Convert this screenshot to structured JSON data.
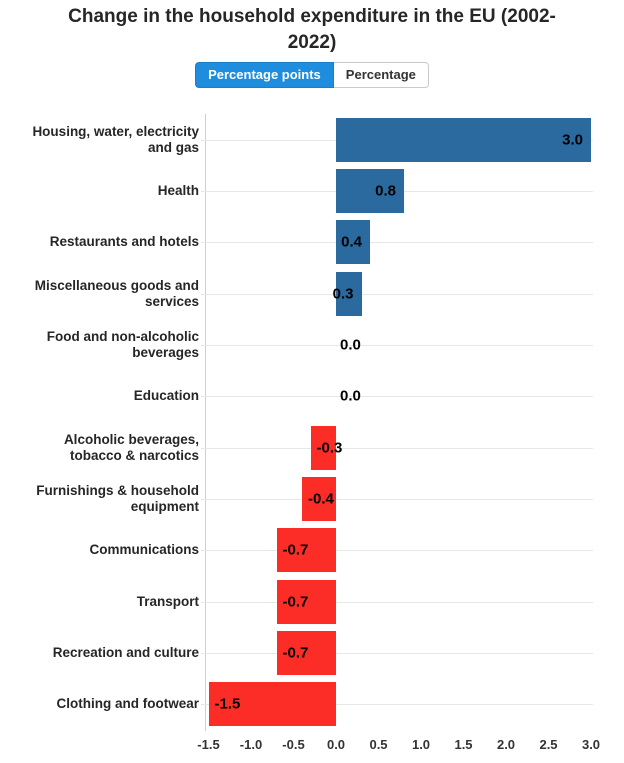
{
  "title": "Change in the household expenditure in the EU (2002-2022)",
  "toggle": {
    "options": [
      {
        "label": "Percentage points",
        "active": true
      },
      {
        "label": "Percentage",
        "active": false
      }
    ]
  },
  "chart_data": {
    "type": "bar",
    "orientation": "horizontal",
    "title": "Change in the household expenditure in the EU (2002-2022)",
    "xlabel": "",
    "ylabel": "",
    "legend": "none",
    "grid": true,
    "xlim": [
      -1.5,
      3.0
    ],
    "x_ticks": [
      "-1.5",
      "-1.0",
      "-0.5",
      "0.0",
      "0.5",
      "1.0",
      "1.5",
      "2.0",
      "2.5",
      "3.0"
    ],
    "categories": [
      "Housing, water, electricity\nand gas",
      "Health",
      "Restaurants and hotels",
      "Miscellaneous goods and\nservices",
      "Food and non-alcoholic\nbeverages",
      "Education",
      "Alcoholic beverages,\ntobacco & narcotics",
      "Furnishings & household\nequipment",
      "Communications",
      "Transport",
      "Recreation and culture",
      "Clothing and footwear"
    ],
    "values": [
      3.0,
      0.8,
      0.4,
      0.3,
      0.0,
      0.0,
      -0.3,
      -0.4,
      -0.7,
      -0.7,
      -0.7,
      -1.5
    ],
    "value_labels": [
      "3.0",
      "0.8",
      "0.4",
      "0.3",
      "0.0",
      "0.0",
      "-0.3",
      "-0.4",
      "-0.7",
      "-0.7",
      "-0.7",
      "-1.5"
    ],
    "colors": {
      "positive": "#2a6a9e",
      "negative": "#fc2d27",
      "gridline": "#e7e7e7",
      "axis_line": "#cfcfcf"
    }
  }
}
